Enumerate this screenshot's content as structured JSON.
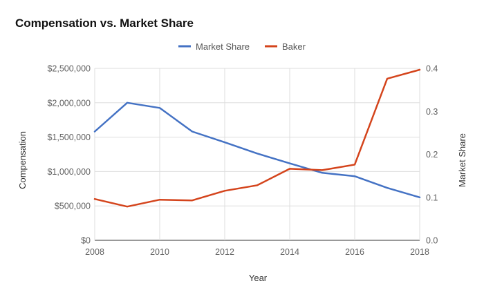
{
  "chart_data": {
    "type": "line",
    "title": "Compensation vs. Market Share",
    "xlabel": "Year",
    "ylabel_left": "Compensation",
    "ylabel_right": "Market Share",
    "x": [
      2008,
      2009,
      2010,
      2011,
      2012,
      2013,
      2014,
      2015,
      2016,
      2017,
      2018
    ],
    "x_ticks": [
      "2008",
      "2010",
      "2012",
      "2014",
      "2016",
      "2018"
    ],
    "ylim_left": [
      0,
      2500000
    ],
    "ylim_right": [
      0,
      0.4
    ],
    "y_ticks_left": [
      "$0",
      "$500,000",
      "$1,000,000",
      "$1,500,000",
      "$2,000,000",
      "$2,500,000"
    ],
    "y_ticks_right": [
      "0.0",
      "0.1",
      "0.2",
      "0.3",
      "0.4"
    ],
    "grid": true,
    "legend_position": "top",
    "series": [
      {
        "name": "Market Share",
        "axis": "right",
        "color": "#4472c4",
        "values": [
          0.253,
          0.32,
          0.308,
          0.253,
          0.228,
          0.202,
          0.179,
          0.157,
          0.149,
          0.122,
          0.1
        ]
      },
      {
        "name": "Baker",
        "axis": "left",
        "color": "#d4441c",
        "values": [
          600000,
          490000,
          590000,
          580000,
          720000,
          800000,
          1040000,
          1020000,
          1100000,
          2350000,
          2480000
        ]
      }
    ]
  }
}
